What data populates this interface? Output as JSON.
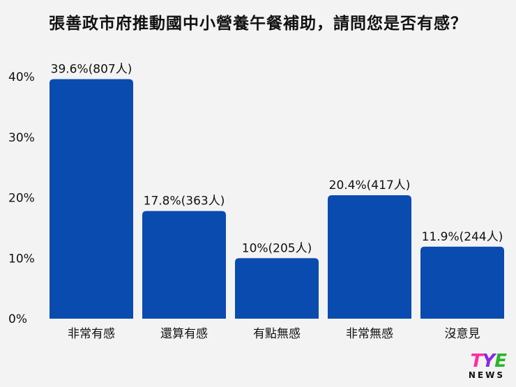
{
  "chart_data": {
    "type": "bar",
    "title": "張善政市府推動國中小營養午餐補助，請問您是否有感？",
    "categories": [
      "非常有感",
      "還算有感",
      "有點無感",
      "非常無感",
      "沒意見"
    ],
    "values": [
      39.6,
      17.8,
      10,
      20.4,
      11.9
    ],
    "counts": [
      807,
      363,
      205,
      417,
      244
    ],
    "data_labels": [
      "39.6%(807人)",
      "17.8%(363人)",
      "10%(205人)",
      "20.4%(417人)",
      "11.9%(244人)"
    ],
    "yticks": [
      "0%",
      "10%",
      "20%",
      "30%",
      "40%"
    ],
    "ytick_values": [
      0,
      10,
      20,
      30,
      40
    ],
    "ylim": [
      0,
      40
    ],
    "grid": false,
    "legend": "none"
  },
  "colors": {
    "bar": "#0a4bb0",
    "text": "#111111",
    "background": "#f3f3f3"
  },
  "logo": {
    "brand_t": "T",
    "brand_y": "Y",
    "brand_e": "E",
    "sub": "NEWS"
  }
}
